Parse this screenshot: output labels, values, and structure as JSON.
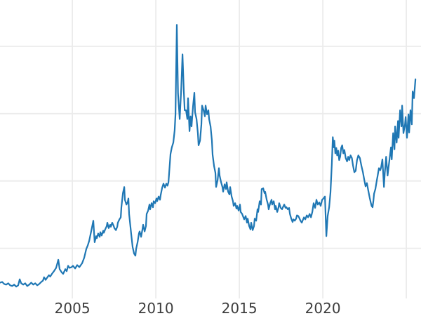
{
  "chart_data": {
    "type": "line",
    "title": "",
    "xlabel": "",
    "ylabel": "",
    "grid": true,
    "legend": "none",
    "xlim": [
      2000.67,
      2025.88
    ],
    "ylim": [
      2.55,
      46.88
    ],
    "x_ticks": [
      {
        "value": 2005,
        "label": "2005"
      },
      {
        "value": 2010,
        "label": "2010"
      },
      {
        "value": 2015,
        "label": "2015"
      },
      {
        "value": 2020,
        "label": "2020"
      },
      {
        "value": 2025,
        "label": ""
      }
    ],
    "y_gridlines": [
      10,
      20,
      30,
      40
    ],
    "style": {
      "line_color": "#1f77b4",
      "grid_color": "#ebebeb",
      "tick_label_color": "#3d3d3d",
      "background_color": "#ffffff"
    },
    "points": [
      [
        2000.68,
        4.9
      ],
      [
        2000.8,
        5.0
      ],
      [
        2000.92,
        4.7
      ],
      [
        2001.04,
        4.6
      ],
      [
        2001.16,
        4.8
      ],
      [
        2001.28,
        4.5
      ],
      [
        2001.4,
        4.4
      ],
      [
        2001.52,
        4.6
      ],
      [
        2001.64,
        4.3
      ],
      [
        2001.76,
        4.5
      ],
      [
        2001.85,
        5.4
      ],
      [
        2001.94,
        4.8
      ],
      [
        2002.06,
        4.6
      ],
      [
        2002.18,
        4.8
      ],
      [
        2002.3,
        4.4
      ],
      [
        2002.42,
        4.6
      ],
      [
        2002.54,
        4.9
      ],
      [
        2002.66,
        4.6
      ],
      [
        2002.78,
        4.8
      ],
      [
        2002.9,
        4.5
      ],
      [
        2003.02,
        4.7
      ],
      [
        2003.14,
        5.0
      ],
      [
        2003.24,
        5.2
      ],
      [
        2003.31,
        5.7
      ],
      [
        2003.4,
        5.3
      ],
      [
        2003.48,
        5.6
      ],
      [
        2003.6,
        6.0
      ],
      [
        2003.68,
        5.8
      ],
      [
        2003.78,
        6.2
      ],
      [
        2003.9,
        6.6
      ],
      [
        2004.03,
        7.1
      ],
      [
        2004.16,
        8.3
      ],
      [
        2004.24,
        6.9
      ],
      [
        2004.37,
        6.4
      ],
      [
        2004.45,
        6.2
      ],
      [
        2004.58,
        6.9
      ],
      [
        2004.66,
        6.6
      ],
      [
        2004.75,
        7.4
      ],
      [
        2004.83,
        7.1
      ],
      [
        2004.96,
        7.2
      ],
      [
        2005.04,
        7.4
      ],
      [
        2005.17,
        7.0
      ],
      [
        2005.29,
        7.5
      ],
      [
        2005.42,
        7.2
      ],
      [
        2005.59,
        7.8
      ],
      [
        2005.71,
        8.6
      ],
      [
        2005.84,
        9.9
      ],
      [
        2005.92,
        10.4
      ],
      [
        2006.01,
        11.1
      ],
      [
        2006.13,
        12.5
      ],
      [
        2006.26,
        14.1
      ],
      [
        2006.34,
        10.9
      ],
      [
        2006.43,
        11.8
      ],
      [
        2006.47,
        11.5
      ],
      [
        2006.55,
        12.2
      ],
      [
        2006.64,
        11.7
      ],
      [
        2006.68,
        12.4
      ],
      [
        2006.76,
        11.9
      ],
      [
        2006.85,
        12.6
      ],
      [
        2006.89,
        12.3
      ],
      [
        2006.97,
        12.8
      ],
      [
        2007.06,
        13.3
      ],
      [
        2007.1,
        13.8
      ],
      [
        2007.18,
        13.0
      ],
      [
        2007.27,
        13.5
      ],
      [
        2007.31,
        13.2
      ],
      [
        2007.39,
        13.8
      ],
      [
        2007.48,
        13.3
      ],
      [
        2007.52,
        13.0
      ],
      [
        2007.61,
        12.7
      ],
      [
        2007.69,
        13.2
      ],
      [
        2007.73,
        13.8
      ],
      [
        2007.82,
        14.3
      ],
      [
        2007.9,
        14.6
      ],
      [
        2007.94,
        16.1
      ],
      [
        2008.03,
        18.2
      ],
      [
        2008.11,
        19.1
      ],
      [
        2008.15,
        17.2
      ],
      [
        2008.24,
        16.5
      ],
      [
        2008.32,
        16.9
      ],
      [
        2008.36,
        17.4
      ],
      [
        2008.4,
        15.1
      ],
      [
        2008.49,
        13.0
      ],
      [
        2008.53,
        12.0
      ],
      [
        2008.61,
        10.2
      ],
      [
        2008.7,
        9.2
      ],
      [
        2008.78,
        8.9
      ],
      [
        2008.82,
        9.9
      ],
      [
        2008.91,
        10.9
      ],
      [
        2008.99,
        12.2
      ],
      [
        2009.03,
        12.5
      ],
      [
        2009.12,
        11.7
      ],
      [
        2009.2,
        12.8
      ],
      [
        2009.24,
        13.5
      ],
      [
        2009.33,
        12.5
      ],
      [
        2009.41,
        13.3
      ],
      [
        2009.45,
        15.1
      ],
      [
        2009.54,
        15.6
      ],
      [
        2009.62,
        16.5
      ],
      [
        2009.66,
        15.8
      ],
      [
        2009.75,
        16.7
      ],
      [
        2009.83,
        16.1
      ],
      [
        2009.87,
        17.0
      ],
      [
        2009.96,
        16.7
      ],
      [
        2010.04,
        17.4
      ],
      [
        2010.08,
        17.0
      ],
      [
        2010.17,
        17.7
      ],
      [
        2010.25,
        17.2
      ],
      [
        2010.29,
        17.9
      ],
      [
        2010.38,
        19.0
      ],
      [
        2010.46,
        19.6
      ],
      [
        2010.55,
        19.0
      ],
      [
        2010.63,
        19.6
      ],
      [
        2010.7,
        19.3
      ],
      [
        2010.76,
        19.8
      ],
      [
        2010.88,
        24.0
      ],
      [
        2010.96,
        25.0
      ],
      [
        2011.05,
        25.7
      ],
      [
        2011.13,
        27.5
      ],
      [
        2011.18,
        29.9
      ],
      [
        2011.26,
        43.2
      ],
      [
        2011.33,
        33.0
      ],
      [
        2011.43,
        29.2
      ],
      [
        2011.52,
        33.5
      ],
      [
        2011.6,
        38.8
      ],
      [
        2011.68,
        33.3
      ],
      [
        2011.73,
        30.5
      ],
      [
        2011.81,
        30.5
      ],
      [
        2011.89,
        29.2
      ],
      [
        2011.93,
        32.3
      ],
      [
        2012.02,
        27.4
      ],
      [
        2012.08,
        29.6
      ],
      [
        2012.14,
        28.1
      ],
      [
        2012.23,
        31.1
      ],
      [
        2012.31,
        33.1
      ],
      [
        2012.35,
        30.2
      ],
      [
        2012.44,
        29.2
      ],
      [
        2012.52,
        27.1
      ],
      [
        2012.56,
        25.3
      ],
      [
        2012.65,
        26.0
      ],
      [
        2012.73,
        28.4
      ],
      [
        2012.77,
        31.2
      ],
      [
        2012.86,
        30.5
      ],
      [
        2012.94,
        29.6
      ],
      [
        2012.98,
        31.2
      ],
      [
        2013.07,
        29.9
      ],
      [
        2013.15,
        30.5
      ],
      [
        2013.19,
        29.2
      ],
      [
        2013.28,
        28.1
      ],
      [
        2013.36,
        26.0
      ],
      [
        2013.4,
        23.9
      ],
      [
        2013.49,
        22.2
      ],
      [
        2013.57,
        21.2
      ],
      [
        2013.61,
        19.1
      ],
      [
        2013.7,
        20.1
      ],
      [
        2013.78,
        21.9
      ],
      [
        2013.82,
        20.8
      ],
      [
        2013.91,
        19.8
      ],
      [
        2013.99,
        19.1
      ],
      [
        2014.03,
        18.4
      ],
      [
        2014.12,
        19.5
      ],
      [
        2014.2,
        18.8
      ],
      [
        2014.24,
        19.8
      ],
      [
        2014.33,
        18.4
      ],
      [
        2014.41,
        18.0
      ],
      [
        2014.45,
        19.1
      ],
      [
        2014.54,
        17.7
      ],
      [
        2014.62,
        17.0
      ],
      [
        2014.66,
        16.3
      ],
      [
        2014.75,
        16.7
      ],
      [
        2014.83,
        15.9
      ],
      [
        2014.87,
        16.3
      ],
      [
        2014.96,
        15.6
      ],
      [
        2015.04,
        16.5
      ],
      [
        2015.08,
        15.4
      ],
      [
        2015.17,
        15.1
      ],
      [
        2015.29,
        14.3
      ],
      [
        2015.38,
        14.8
      ],
      [
        2015.46,
        13.8
      ],
      [
        2015.5,
        14.4
      ],
      [
        2015.59,
        13.3
      ],
      [
        2015.67,
        12.8
      ],
      [
        2015.71,
        13.8
      ],
      [
        2015.8,
        12.7
      ],
      [
        2015.88,
        13.3
      ],
      [
        2015.92,
        14.4
      ],
      [
        2016.01,
        14.1
      ],
      [
        2016.09,
        15.8
      ],
      [
        2016.13,
        15.4
      ],
      [
        2016.22,
        17.0
      ],
      [
        2016.3,
        16.5
      ],
      [
        2016.34,
        18.8
      ],
      [
        2016.43,
        18.9
      ],
      [
        2016.51,
        18.2
      ],
      [
        2016.55,
        18.4
      ],
      [
        2016.64,
        17.2
      ],
      [
        2016.72,
        16.5
      ],
      [
        2016.76,
        15.8
      ],
      [
        2016.85,
        16.7
      ],
      [
        2016.93,
        17.2
      ],
      [
        2016.97,
        16.5
      ],
      [
        2017.06,
        17.0
      ],
      [
        2017.14,
        15.8
      ],
      [
        2017.18,
        16.3
      ],
      [
        2017.27,
        15.4
      ],
      [
        2017.35,
        16.1
      ],
      [
        2017.39,
        16.7
      ],
      [
        2017.48,
        16.0
      ],
      [
        2017.56,
        15.8
      ],
      [
        2017.61,
        16.1
      ],
      [
        2017.69,
        16.5
      ],
      [
        2017.77,
        16.0
      ],
      [
        2017.82,
        16.1
      ],
      [
        2017.9,
        15.8
      ],
      [
        2017.98,
        16.0
      ],
      [
        2018.03,
        15.1
      ],
      [
        2018.11,
        14.4
      ],
      [
        2018.19,
        13.9
      ],
      [
        2018.24,
        14.3
      ],
      [
        2018.32,
        14.1
      ],
      [
        2018.4,
        14.4
      ],
      [
        2018.45,
        14.9
      ],
      [
        2018.53,
        14.8
      ],
      [
        2018.61,
        14.4
      ],
      [
        2018.66,
        14.1
      ],
      [
        2018.74,
        13.8
      ],
      [
        2018.82,
        14.3
      ],
      [
        2018.87,
        14.6
      ],
      [
        2018.95,
        14.3
      ],
      [
        2019.04,
        14.9
      ],
      [
        2019.12,
        14.6
      ],
      [
        2019.21,
        15.1
      ],
      [
        2019.29,
        14.6
      ],
      [
        2019.37,
        15.4
      ],
      [
        2019.45,
        16.7
      ],
      [
        2019.54,
        16.0
      ],
      [
        2019.62,
        17.2
      ],
      [
        2019.7,
        16.5
      ],
      [
        2019.79,
        16.8
      ],
      [
        2019.87,
        16.3
      ],
      [
        2019.96,
        17.2
      ],
      [
        2020.04,
        17.4
      ],
      [
        2020.13,
        17.7
      ],
      [
        2020.21,
        11.8
      ],
      [
        2020.29,
        14.8
      ],
      [
        2020.38,
        16.1
      ],
      [
        2020.46,
        18.3
      ],
      [
        2020.54,
        22.5
      ],
      [
        2020.6,
        26.5
      ],
      [
        2020.65,
        25.0
      ],
      [
        2020.69,
        26.0
      ],
      [
        2020.75,
        24.1
      ],
      [
        2020.81,
        24.9
      ],
      [
        2020.86,
        23.8
      ],
      [
        2020.92,
        24.5
      ],
      [
        2020.98,
        23.1
      ],
      [
        2021.04,
        23.6
      ],
      [
        2021.1,
        24.9
      ],
      [
        2021.16,
        25.3
      ],
      [
        2021.23,
        24.1
      ],
      [
        2021.29,
        24.6
      ],
      [
        2021.37,
        23.4
      ],
      [
        2021.45,
        22.9
      ],
      [
        2021.52,
        23.6
      ],
      [
        2021.58,
        23.1
      ],
      [
        2021.66,
        23.8
      ],
      [
        2021.74,
        23.4
      ],
      [
        2021.81,
        22.3
      ],
      [
        2021.89,
        21.3
      ],
      [
        2021.97,
        21.5
      ],
      [
        2022.05,
        23.1
      ],
      [
        2022.13,
        23.8
      ],
      [
        2022.22,
        23.4
      ],
      [
        2022.31,
        22.3
      ],
      [
        2022.4,
        21.3
      ],
      [
        2022.48,
        20.2
      ],
      [
        2022.56,
        19.2
      ],
      [
        2022.64,
        19.7
      ],
      [
        2022.72,
        18.6
      ],
      [
        2022.81,
        17.5
      ],
      [
        2022.87,
        16.8
      ],
      [
        2022.92,
        16.3
      ],
      [
        2022.98,
        16.1
      ],
      [
        2023.03,
        17.1
      ],
      [
        2023.07,
        18.1
      ],
      [
        2023.15,
        18.8
      ],
      [
        2023.24,
        20.2
      ],
      [
        2023.28,
        20.7
      ],
      [
        2023.36,
        21.9
      ],
      [
        2023.44,
        21.6
      ],
      [
        2023.49,
        22.0
      ],
      [
        2023.57,
        23.2
      ],
      [
        2023.66,
        19.1
      ],
      [
        2023.71,
        21.2
      ],
      [
        2023.79,
        23.6
      ],
      [
        2023.88,
        20.8
      ],
      [
        2023.96,
        22.5
      ],
      [
        2024.08,
        25.0
      ],
      [
        2024.13,
        23.2
      ],
      [
        2024.21,
        27.1
      ],
      [
        2024.29,
        24.7
      ],
      [
        2024.33,
        28.1
      ],
      [
        2024.42,
        25.7
      ],
      [
        2024.5,
        28.9
      ],
      [
        2024.54,
        26.4
      ],
      [
        2024.63,
        30.5
      ],
      [
        2024.71,
        28.1
      ],
      [
        2024.75,
        31.2
      ],
      [
        2024.83,
        27.1
      ],
      [
        2024.92,
        28.4
      ],
      [
        2024.96,
        29.5
      ],
      [
        2025.04,
        26.4
      ],
      [
        2025.13,
        29.9
      ],
      [
        2025.17,
        27.2
      ],
      [
        2025.25,
        30.5
      ],
      [
        2025.33,
        28.4
      ],
      [
        2025.38,
        33.3
      ],
      [
        2025.46,
        32.3
      ],
      [
        2025.55,
        35.1
      ]
    ]
  }
}
